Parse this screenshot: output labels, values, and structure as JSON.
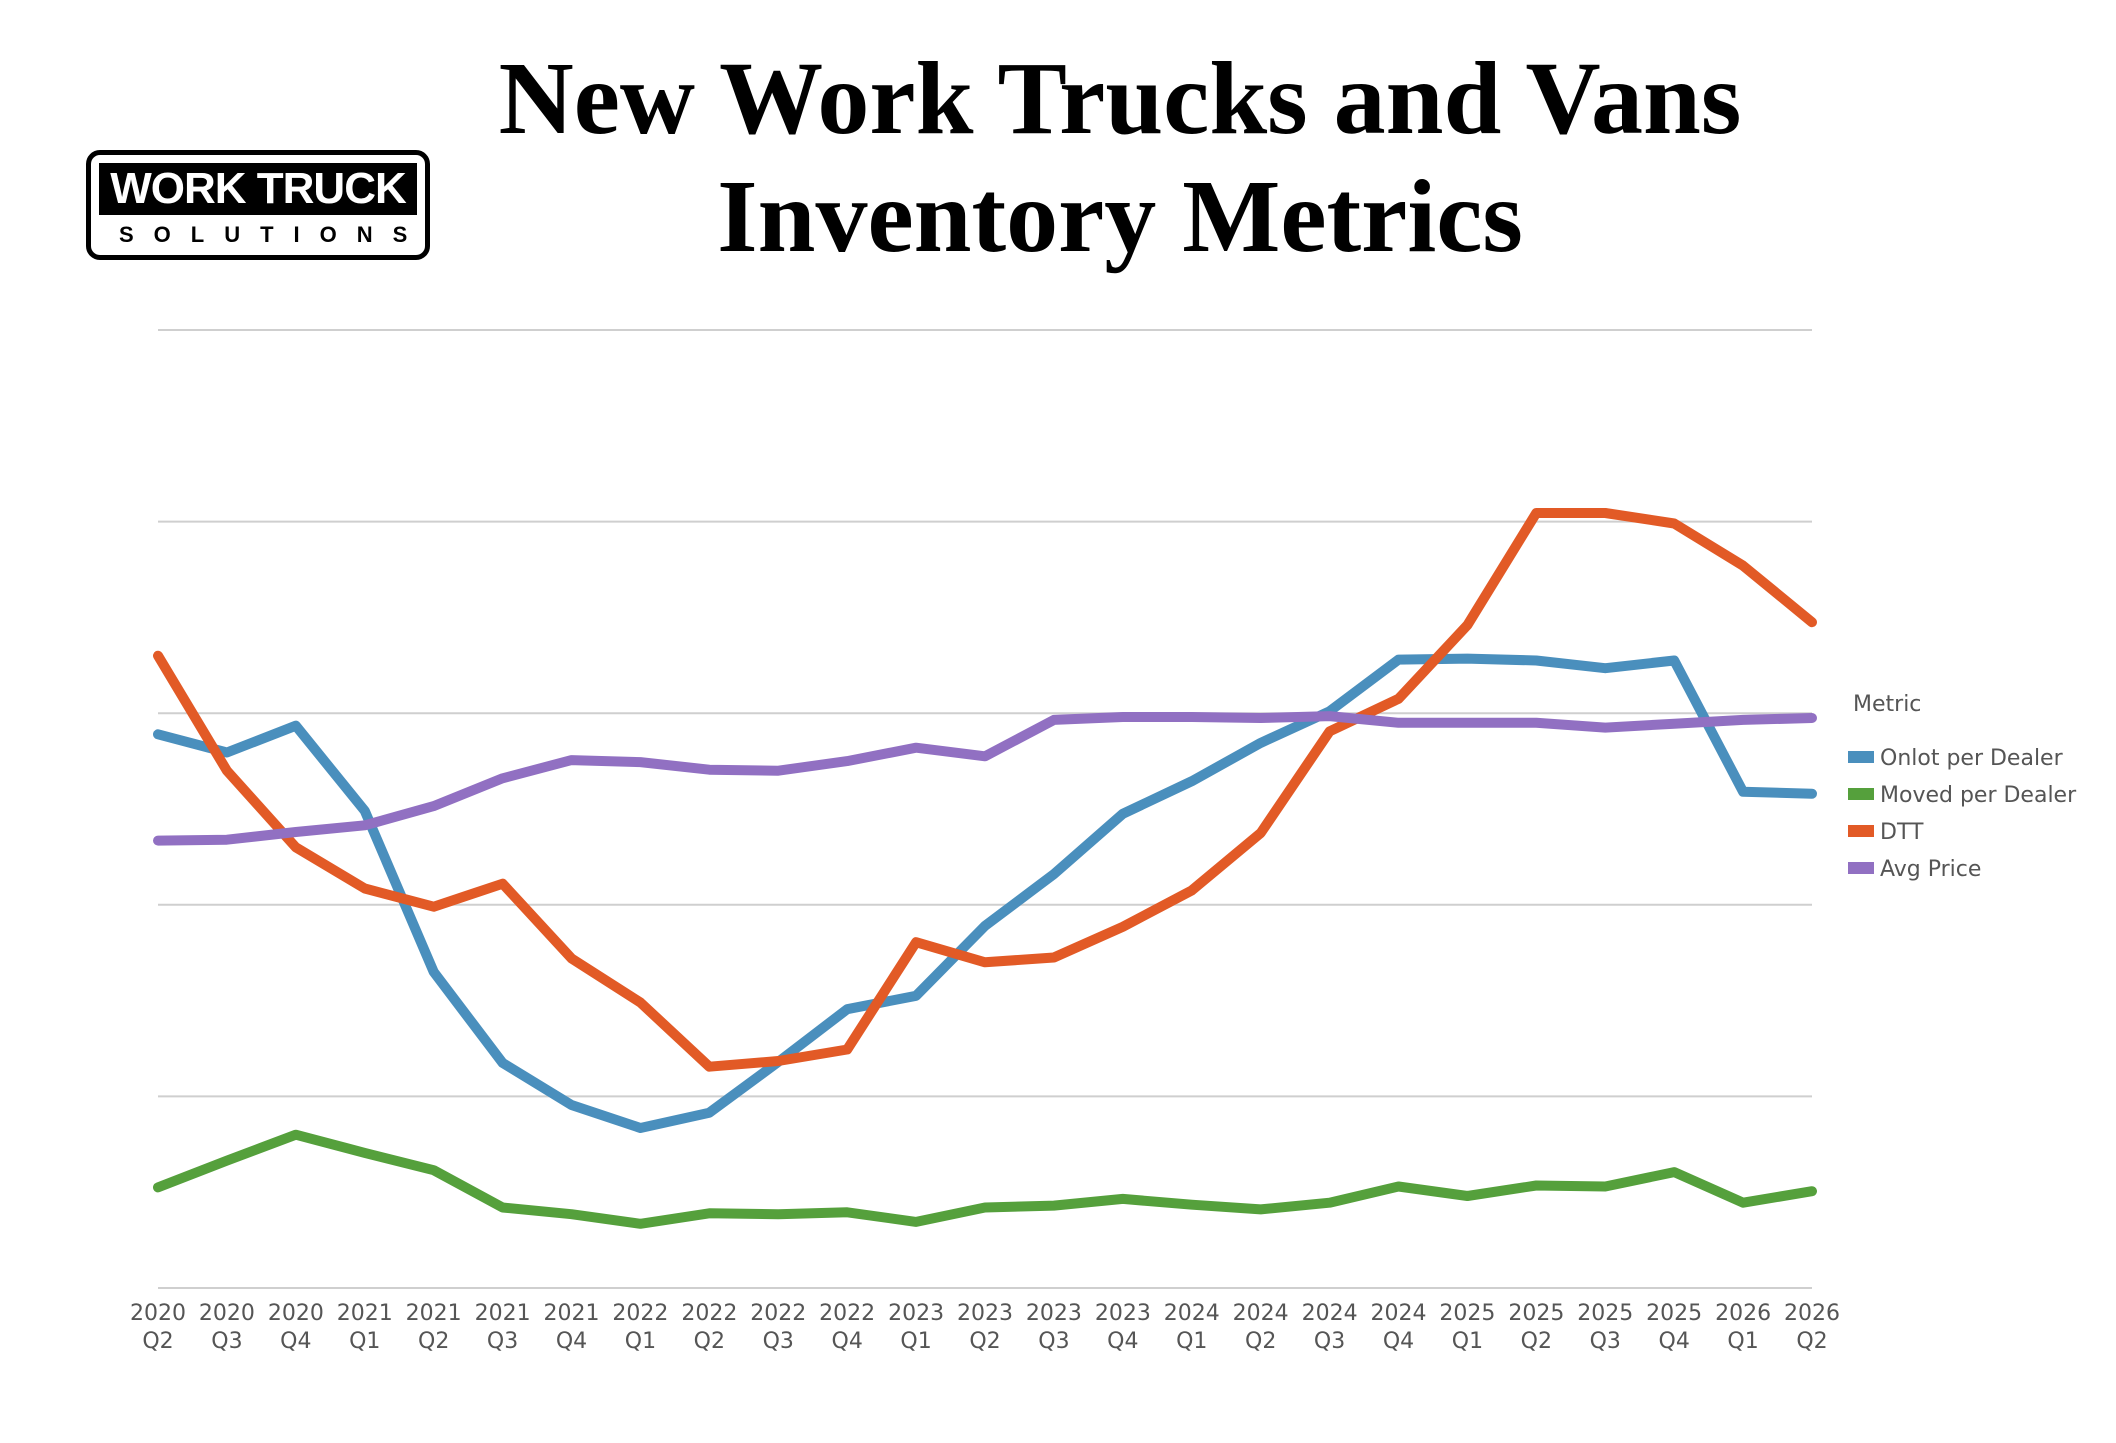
{
  "logo": {
    "line1": "WORK TRUCK",
    "line2": "SOLUTIONS"
  },
  "title_line1": "New Work Trucks and Vans",
  "title_line2": "Inventory Metrics",
  "chart_data": {
    "type": "line",
    "title": "New Work Trucks and Vans Inventory Metrics",
    "xlabel": "",
    "ylabel": "",
    "ylim": [
      0,
      100
    ],
    "grid": true,
    "legend_title": "Metric",
    "legend_position": "right",
    "categories": [
      "2020 Q2",
      "2020 Q3",
      "2020 Q4",
      "2021 Q1",
      "2021 Q2",
      "2021 Q3",
      "2021 Q4",
      "2022 Q1",
      "2022 Q2",
      "2022 Q3",
      "2022 Q4",
      "2023 Q1",
      "2023 Q2",
      "2023 Q3",
      "2023 Q4",
      "2024 Q1",
      "2024 Q2",
      "2024 Q3",
      "2024 Q4",
      "2025 Q1",
      "2025 Q2",
      "2025 Q3",
      "2025 Q4",
      "2026 Q1",
      "2026 Q2"
    ],
    "series": [
      {
        "name": "Onlot per Dealer",
        "color": "#4a8fbd",
        "values": [
          57.8,
          55.9,
          58.7,
          49.8,
          33.0,
          23.5,
          19.1,
          16.7,
          18.3,
          23.6,
          29.1,
          30.5,
          37.8,
          43.2,
          49.5,
          52.9,
          56.9,
          60.2,
          65.6,
          65.7,
          65.5,
          64.7,
          65.5,
          51.8,
          51.6
        ]
      },
      {
        "name": "Moved per Dealer",
        "color": "#55a03c",
        "values": [
          10.5,
          13.3,
          16.0,
          14.1,
          12.3,
          8.4,
          7.7,
          6.7,
          7.8,
          7.7,
          7.9,
          6.9,
          8.4,
          8.6,
          9.3,
          8.7,
          8.2,
          8.9,
          10.6,
          9.6,
          10.7,
          10.6,
          12.1,
          8.9,
          10.1
        ]
      },
      {
        "name": "DTT",
        "color": "#e25a26",
        "values": [
          66.0,
          54.0,
          46.0,
          41.7,
          39.8,
          42.2,
          34.4,
          29.8,
          23.1,
          23.7,
          24.9,
          36.1,
          34.0,
          34.5,
          37.7,
          41.5,
          47.5,
          58.1,
          61.5,
          69.2,
          80.9,
          80.9,
          79.8,
          75.4,
          69.5
        ]
      },
      {
        "name": "Avg Price",
        "color": "#9170c2",
        "values": [
          46.7,
          46.8,
          47.6,
          48.3,
          50.3,
          53.2,
          55.1,
          54.9,
          54.1,
          54.0,
          55.0,
          56.4,
          55.5,
          59.3,
          59.6,
          59.6,
          59.5,
          59.7,
          59.0,
          59.0,
          59.0,
          58.5,
          58.9,
          59.3,
          59.5
        ]
      }
    ]
  }
}
